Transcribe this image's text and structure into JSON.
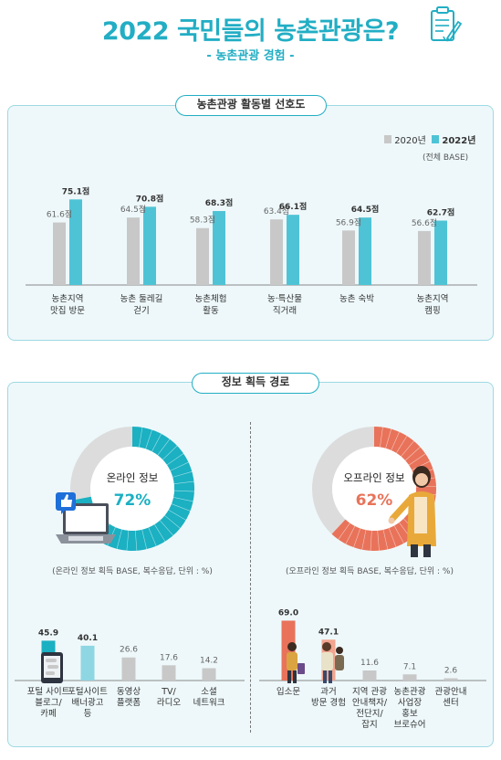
{
  "header": {
    "title": "2022 국민들의 농촌관광은?",
    "subtitle": "- 농촌관광 경험 -"
  },
  "section1": {
    "pill": "농촌관광 활동별 선호도",
    "legend": [
      "2020년",
      "2022년"
    ],
    "base_note": "(전체 BASE)"
  },
  "section2": {
    "pill": "정보 획득 경로",
    "online_note": "(온라인 정보 획득 BASE, 복수응답, 단위 : %)",
    "offline_note": "(오프라인 정보 획득 BASE, 복수응답, 단위 : %)"
  },
  "colors": {
    "accent": "#22aec4",
    "gray_bar": "#c8c8c8",
    "teal_bar": "#4fc3d6",
    "online_bar": "#1bb0c2",
    "online_bar_light": "#8fd6e3",
    "offline_bar": "#e8735a",
    "offline_bar_light": "#f2a58f",
    "donut_gray": "#dcdcdc"
  },
  "chart_data": [
    {
      "type": "bar",
      "title": "농촌관광 활동별 선호도",
      "categories": [
        "농촌지역\n맛집 방문",
        "농촌 둘레길\n걷기",
        "농촌체험\n활동",
        "농·특산물\n직거래",
        "농촌 숙박",
        "농촌지역\n캠핑"
      ],
      "series": [
        {
          "name": "2020년",
          "values": [
            61.6,
            64.5,
            58.3,
            63.4,
            56.9,
            56.6
          ],
          "labels": [
            "61.6점",
            "64.5점",
            "58.3점",
            "63.4점",
            "56.9점",
            "56.6점"
          ]
        },
        {
          "name": "2022년",
          "values": [
            75.1,
            70.8,
            68.3,
            66.1,
            64.5,
            62.7
          ],
          "labels": [
            "75.1점",
            "70.8점",
            "68.3점",
            "66.1점",
            "64.5점",
            "62.7점"
          ]
        }
      ]
    },
    {
      "type": "pie",
      "title": "온라인 정보",
      "values": [
        72,
        28
      ],
      "value_label": "72%"
    },
    {
      "type": "pie",
      "title": "오프라인 정보",
      "values": [
        62,
        38
      ],
      "value_label": "62%"
    },
    {
      "type": "bar",
      "categories": [
        "포털 사이트\n블로그/\n카페",
        "포털사이트\n배너광고\n등",
        "동영상\n플랫폼",
        "TV/\n라디오",
        "소셜\n네트워크"
      ],
      "values": [
        45.9,
        40.1,
        26.6,
        17.6,
        14.2
      ],
      "labels": [
        "45.9",
        "40.1",
        "26.6",
        "17.6",
        "14.2"
      ]
    },
    {
      "type": "bar",
      "categories": [
        "입소문",
        "과거\n방문 경험",
        "지역 관광\n안내책자/\n전단지/\n잡지",
        "농촌관광\n사업장\n홍보\n브로슈어",
        "관광안내\n센터"
      ],
      "values": [
        69.0,
        47.1,
        11.6,
        7.1,
        2.6
      ],
      "labels": [
        "69.0",
        "47.1",
        "11.6",
        "7.1",
        "2.6"
      ]
    }
  ]
}
